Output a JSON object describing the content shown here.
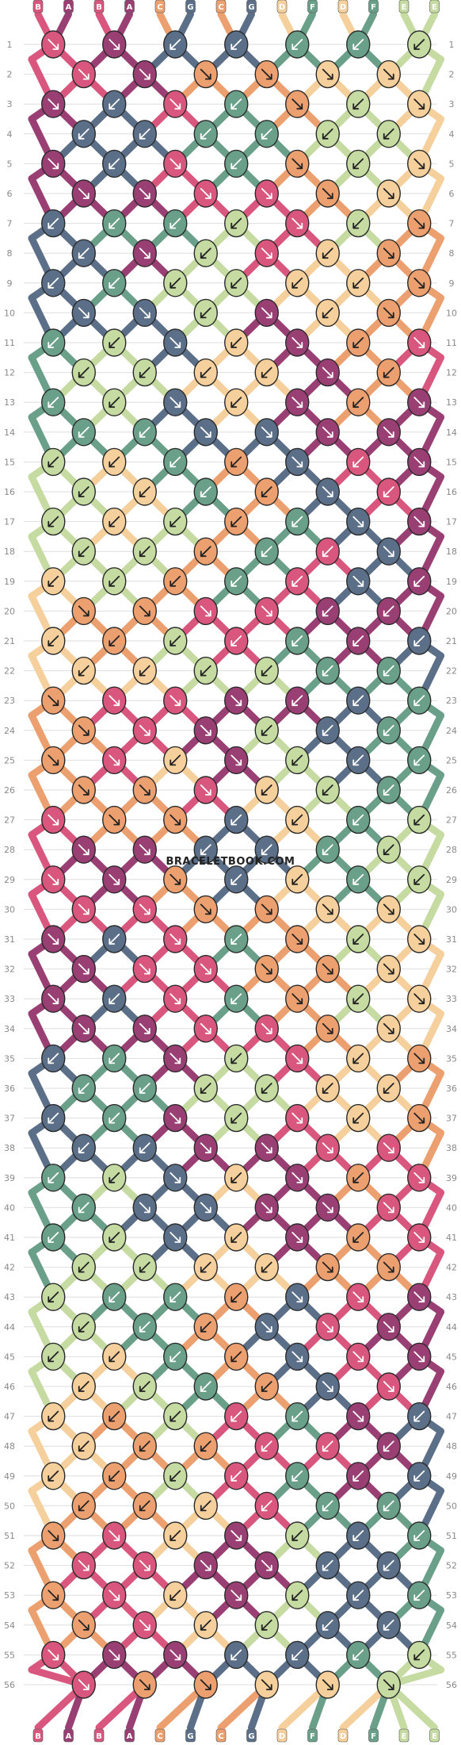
{
  "site": {
    "watermark": "BRACELETBOOK.COM"
  },
  "colors": {
    "A": "#9a3f74",
    "B": "#d9577e",
    "C": "#eca06f",
    "D": "#f6d09c",
    "E": "#c5dba2",
    "F": "#6aa08a",
    "G": "#5b6f88"
  },
  "strands_top": [
    "B",
    "A",
    "B",
    "A",
    "C",
    "G",
    "C",
    "G",
    "D",
    "F",
    "D",
    "F",
    "E",
    "E"
  ],
  "strands_bottom": [
    "B",
    "A",
    "B",
    "A",
    "C",
    "G",
    "C",
    "G",
    "D",
    "F",
    "D",
    "F",
    "E",
    "E"
  ],
  "row_numbers": [
    "1",
    "2",
    "3",
    "4",
    "5",
    "6",
    "7",
    "8",
    "9",
    "10",
    "11",
    "12",
    "13",
    "14",
    "15",
    "16",
    "17",
    "18",
    "19",
    "20",
    "21",
    "22",
    "23",
    "24",
    "25",
    "26",
    "27",
    "28",
    "29",
    "30",
    "31",
    "32",
    "33",
    "34",
    "35",
    "36",
    "37",
    "38",
    "39",
    "40",
    "41",
    "42",
    "43",
    "44",
    "45",
    "46",
    "47",
    "48",
    "49",
    "50",
    "51",
    "52",
    "53",
    "54",
    "55",
    "56"
  ],
  "knot_colors": [
    [
      "B",
      "A",
      "G",
      "G",
      "F",
      "F",
      "E"
    ],
    [
      "B",
      "A",
      "C",
      "C",
      "D",
      "D"
    ],
    [
      "A",
      "G",
      "B",
      "F",
      "C",
      "E",
      "D"
    ],
    [
      "G",
      "G",
      "F",
      "F",
      "E",
      "E"
    ],
    [
      "A",
      "G",
      "B",
      "F",
      "C",
      "E",
      "D"
    ],
    [
      "A",
      "A",
      "B",
      "B",
      "C",
      "D"
    ],
    [
      "G",
      "F",
      "F",
      "E",
      "B",
      "E",
      "C"
    ],
    [
      "G",
      "A",
      "E",
      "B",
      "D",
      "C"
    ],
    [
      "G",
      "F",
      "E",
      "E",
      "D",
      "D",
      "C"
    ],
    [
      "G",
      "G",
      "E",
      "A",
      "D",
      "C"
    ],
    [
      "F",
      "E",
      "G",
      "D",
      "A",
      "C",
      "B"
    ],
    [
      "E",
      "E",
      "D",
      "D",
      "A",
      "C"
    ],
    [
      "F",
      "E",
      "G",
      "D",
      "A",
      "C",
      "A"
    ],
    [
      "F",
      "F",
      "G",
      "G",
      "A",
      "A"
    ],
    [
      "E",
      "D",
      "F",
      "C",
      "G",
      "B",
      "A"
    ],
    [
      "E",
      "D",
      "F",
      "C",
      "G",
      "B"
    ],
    [
      "E",
      "D",
      "E",
      "C",
      "F",
      "G",
      "A"
    ],
    [
      "E",
      "E",
      "C",
      "F",
      "B",
      "G"
    ],
    [
      "D",
      "E",
      "C",
      "F",
      "B",
      "G",
      "A"
    ],
    [
      "C",
      "C",
      "B",
      "B",
      "A",
      "A"
    ],
    [
      "D",
      "C",
      "E",
      "B",
      "F",
      "A",
      "G"
    ],
    [
      "D",
      "D",
      "E",
      "E",
      "F",
      "F"
    ],
    [
      "C",
      "B",
      "B",
      "A",
      "A",
      "G",
      "F"
    ],
    [
      "C",
      "B",
      "A",
      "E",
      "G",
      "F"
    ],
    [
      "C",
      "B",
      "D",
      "A",
      "E",
      "G",
      "F"
    ],
    [
      "C",
      "C",
      "B",
      "D",
      "E",
      "F"
    ],
    [
      "B",
      "C",
      "C",
      "G",
      "D",
      "F",
      "E"
    ],
    [
      "A",
      "A",
      "G",
      "G",
      "F",
      "E"
    ],
    [
      "B",
      "A",
      "C",
      "G",
      "D",
      "F",
      "E"
    ],
    [
      "B",
      "B",
      "C",
      "C",
      "D",
      "D"
    ],
    [
      "A",
      "G",
      "B",
      "F",
      "C",
      "E",
      "D"
    ],
    [
      "A",
      "B",
      "B",
      "C",
      "C",
      "D"
    ],
    [
      "A",
      "G",
      "B",
      "F",
      "C",
      "E",
      "D"
    ],
    [
      "A",
      "A",
      "B",
      "B",
      "C",
      "D"
    ],
    [
      "G",
      "F",
      "A",
      "E",
      "B",
      "D",
      "C"
    ],
    [
      "F",
      "F",
      "E",
      "E",
      "D",
      "D"
    ],
    [
      "G",
      "F",
      "A",
      "E",
      "B",
      "D",
      "C"
    ],
    [
      "G",
      "G",
      "A",
      "A",
      "B",
      "B"
    ],
    [
      "F",
      "E",
      "G",
      "D",
      "A",
      "C",
      "B"
    ],
    [
      "F",
      "G",
      "G",
      "A",
      "A",
      "B"
    ],
    [
      "F",
      "E",
      "G",
      "D",
      "A",
      "C",
      "B"
    ],
    [
      "E",
      "E",
      "D",
      "D",
      "C",
      "C"
    ],
    [
      "E",
      "F",
      "F",
      "C",
      "G",
      "B",
      "A"
    ],
    [
      "E",
      "F",
      "C",
      "G",
      "B",
      "A"
    ],
    [
      "E",
      "D",
      "F",
      "C",
      "G",
      "B",
      "A"
    ],
    [
      "D",
      "E",
      "F",
      "C",
      "G",
      "B"
    ],
    [
      "D",
      "C",
      "E",
      "B",
      "F",
      "A",
      "G"
    ],
    [
      "D",
      "C",
      "C",
      "B",
      "B",
      "A"
    ],
    [
      "D",
      "C",
      "E",
      "B",
      "F",
      "A",
      "G"
    ],
    [
      "C",
      "C",
      "D",
      "B",
      "F",
      "F"
    ],
    [
      "C",
      "B",
      "D",
      "A",
      "E",
      "G",
      "F"
    ],
    [
      "B",
      "B",
      "A",
      "A",
      "G",
      "G"
    ],
    [
      "C",
      "B",
      "D",
      "A",
      "E",
      "G",
      "F"
    ],
    [
      "C",
      "B",
      "D",
      "E",
      "G",
      "G"
    ],
    [
      "B",
      "A",
      "A",
      "G",
      "G",
      "F",
      "E"
    ],
    [
      "B",
      "C",
      "C",
      "D",
      "D",
      "E"
    ]
  ],
  "knot_dirs": [
    [
      "R",
      "R",
      "L",
      "L",
      "L",
      "L",
      "L"
    ],
    [
      "R",
      "R",
      "R",
      "R",
      "R",
      "R"
    ],
    [
      "R",
      "L",
      "R",
      "L",
      "R",
      "L",
      "R"
    ],
    [
      "L",
      "L",
      "L",
      "L",
      "L",
      "L"
    ],
    [
      "R",
      "L",
      "R",
      "L",
      "R",
      "L",
      "R"
    ],
    [
      "R",
      "R",
      "R",
      "R",
      "R",
      "R"
    ],
    [
      "L",
      "L",
      "L",
      "L",
      "R",
      "L",
      "R"
    ],
    [
      "L",
      "R",
      "L",
      "R",
      "L",
      "R"
    ],
    [
      "L",
      "L",
      "L",
      "L",
      "L",
      "L",
      "R"
    ],
    [
      "R",
      "R",
      "L",
      "R",
      "L",
      "R"
    ],
    [
      "L",
      "L",
      "R",
      "L",
      "R",
      "L",
      "R"
    ],
    [
      "L",
      "L",
      "L",
      "L",
      "R",
      "L"
    ],
    [
      "L",
      "L",
      "R",
      "L",
      "R",
      "L",
      "R"
    ],
    [
      "L",
      "L",
      "R",
      "R",
      "R",
      "R"
    ],
    [
      "L",
      "L",
      "L",
      "L",
      "R",
      "L",
      "R"
    ],
    [
      "L",
      "L",
      "L",
      "L",
      "R",
      "L"
    ],
    [
      "L",
      "L",
      "L",
      "L",
      "L",
      "R",
      "R"
    ],
    [
      "L",
      "L",
      "L",
      "L",
      "L",
      "R"
    ],
    [
      "L",
      "L",
      "L",
      "L",
      "L",
      "R",
      "L"
    ],
    [
      "R",
      "R",
      "R",
      "R",
      "L",
      "L"
    ],
    [
      "L",
      "L",
      "L",
      "L",
      "L",
      "L",
      "L"
    ],
    [
      "L",
      "L",
      "L",
      "L",
      "L",
      "L"
    ],
    [
      "R",
      "R",
      "R",
      "R",
      "L",
      "L",
      "L"
    ],
    [
      "R",
      "R",
      "R",
      "L",
      "L",
      "L"
    ],
    [
      "R",
      "R",
      "L",
      "R",
      "L",
      "L",
      "L"
    ],
    [
      "R",
      "R",
      "R",
      "L",
      "L",
      "L"
    ],
    [
      "R",
      "R",
      "R",
      "L",
      "L",
      "L",
      "L"
    ],
    [
      "R",
      "R",
      "L",
      "L",
      "L",
      "L"
    ],
    [
      "R",
      "R",
      "R",
      "L",
      "L",
      "L",
      "L"
    ],
    [
      "R",
      "R",
      "R",
      "R",
      "R",
      "R"
    ],
    [
      "R",
      "L",
      "R",
      "L",
      "R",
      "L",
      "R"
    ],
    [
      "R",
      "R",
      "R",
      "R",
      "R",
      "R"
    ],
    [
      "R",
      "L",
      "R",
      "L",
      "R",
      "L",
      "R"
    ],
    [
      "R",
      "R",
      "R",
      "R",
      "R",
      "R"
    ],
    [
      "L",
      "L",
      "R",
      "L",
      "R",
      "L",
      "R"
    ],
    [
      "L",
      "L",
      "L",
      "L",
      "L",
      "L"
    ],
    [
      "L",
      "L",
      "R",
      "L",
      "R",
      "L",
      "R"
    ],
    [
      "L",
      "L",
      "R",
      "R",
      "R",
      "R"
    ],
    [
      "L",
      "L",
      "R",
      "L",
      "R",
      "L",
      "R"
    ],
    [
      "L",
      "R",
      "R",
      "R",
      "R",
      "R"
    ],
    [
      "L",
      "L",
      "R",
      "L",
      "R",
      "L",
      "R"
    ],
    [
      "L",
      "L",
      "L",
      "L",
      "R",
      "R"
    ],
    [
      "L",
      "L",
      "L",
      "L",
      "R",
      "R",
      "R"
    ],
    [
      "L",
      "L",
      "L",
      "R",
      "R",
      "R"
    ],
    [
      "L",
      "L",
      "L",
      "L",
      "R",
      "R",
      "R"
    ],
    [
      "L",
      "L",
      "L",
      "L",
      "R",
      "R"
    ],
    [
      "L",
      "L",
      "L",
      "L",
      "L",
      "R",
      "L"
    ],
    [
      "L",
      "L",
      "L",
      "L",
      "L",
      "L"
    ],
    [
      "L",
      "L",
      "L",
      "L",
      "L",
      "L",
      "L"
    ],
    [
      "L",
      "L",
      "L",
      "L",
      "L",
      "L"
    ],
    [
      "R",
      "R",
      "L",
      "R",
      "L",
      "L",
      "L"
    ],
    [
      "R",
      "R",
      "R",
      "R",
      "L",
      "L"
    ],
    [
      "R",
      "R",
      "L",
      "R",
      "L",
      "L",
      "L"
    ],
    [
      "R",
      "R",
      "L",
      "L",
      "L",
      "L"
    ],
    [
      "R",
      "R",
      "R",
      "L",
      "L",
      "L",
      "L"
    ],
    [
      "R",
      "R",
      "R",
      "R",
      "R",
      "R"
    ]
  ]
}
